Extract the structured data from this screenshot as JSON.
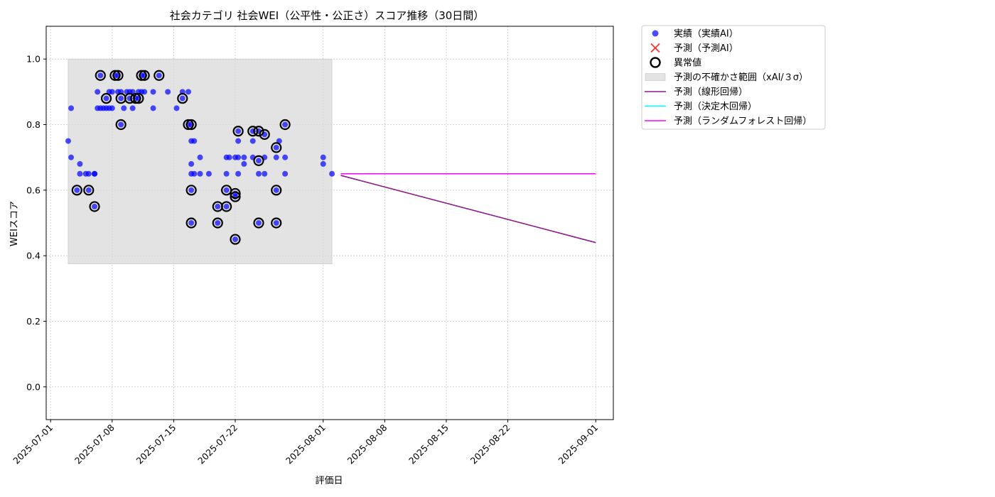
{
  "chart_data": {
    "type": "scatter",
    "title": "社会カテゴリ 社会WEI（公平性・公正さ）スコア推移（30日間）",
    "xlabel": "評価日",
    "ylabel": "WEIスコア",
    "xlim": [
      "2025-06-30T12:00",
      "2025-09-03"
    ],
    "ylim": [
      -0.1,
      1.1
    ],
    "x_ticks": [
      "2025-07-01",
      "2025-07-08",
      "2025-07-15",
      "2025-07-22",
      "2025-08-01",
      "2025-08-08",
      "2025-08-15",
      "2025-08-22",
      "2025-09-01"
    ],
    "y_ticks": [
      "0.0",
      "0.2",
      "0.4",
      "0.6",
      "0.8",
      "1.0"
    ],
    "grid": true,
    "legend_position": "outside upper right",
    "uncertainty_band": {
      "x_start": "2025-07-03",
      "x_end": "2025-08-02",
      "y_min": 0.375,
      "y_max": 1.0,
      "color": "#d9d9d9"
    },
    "series": [
      {
        "name": "実績（実績AI）",
        "kind": "scatter",
        "color": "#0000ff",
        "points": [
          [
            "2025-07-03 00:00",
            0.75
          ],
          [
            "2025-07-03 08:00",
            0.7
          ],
          [
            "2025-07-03 08:00",
            0.85
          ],
          [
            "2025-07-04 00:00",
            0.6
          ],
          [
            "2025-07-04 08:00",
            0.68
          ],
          [
            "2025-07-04 08:00",
            0.65
          ],
          [
            "2025-07-05 00:00",
            0.65
          ],
          [
            "2025-07-05 08:00",
            0.6
          ],
          [
            "2025-07-05 08:00",
            0.65
          ],
          [
            "2025-07-06 00:00",
            0.55
          ],
          [
            "2025-07-06 00:00",
            0.65
          ],
          [
            "2025-07-06 00:00",
            0.65
          ],
          [
            "2025-07-06 08:00",
            0.9
          ],
          [
            "2025-07-06 08:00",
            0.85
          ],
          [
            "2025-07-06 16:00",
            0.95
          ],
          [
            "2025-07-06 16:00",
            0.85
          ],
          [
            "2025-07-07 00:00",
            0.85
          ],
          [
            "2025-07-07 08:00",
            0.88
          ],
          [
            "2025-07-07 08:00",
            0.85
          ],
          [
            "2025-07-07 16:00",
            0.9
          ],
          [
            "2025-07-07 16:00",
            0.85
          ],
          [
            "2025-07-08 00:00",
            0.9
          ],
          [
            "2025-07-08 00:00",
            0.85
          ],
          [
            "2025-07-08 08:00",
            0.95
          ],
          [
            "2025-07-08 16:00",
            0.9
          ],
          [
            "2025-07-08 16:00",
            0.95
          ],
          [
            "2025-07-09 00:00",
            0.88
          ],
          [
            "2025-07-09 00:00",
            0.9
          ],
          [
            "2025-07-09 00:00",
            0.8
          ],
          [
            "2025-07-09 08:00",
            0.85
          ],
          [
            "2025-07-09 16:00",
            0.9
          ],
          [
            "2025-07-10 00:00",
            0.88
          ],
          [
            "2025-07-10 00:00",
            0.9
          ],
          [
            "2025-07-10 08:00",
            0.9
          ],
          [
            "2025-07-10 08:00",
            0.85
          ],
          [
            "2025-07-10 16:00",
            0.88
          ],
          [
            "2025-07-11 00:00",
            0.9
          ],
          [
            "2025-07-11 00:00",
            0.88
          ],
          [
            "2025-07-11 08:00",
            0.95
          ],
          [
            "2025-07-11 08:00",
            0.9
          ],
          [
            "2025-07-11 16:00",
            0.95
          ],
          [
            "2025-07-11 16:00",
            0.9
          ],
          [
            "2025-07-12 16:00",
            0.9
          ],
          [
            "2025-07-12 16:00",
            0.85
          ],
          [
            "2025-07-13 08:00",
            0.95
          ],
          [
            "2025-07-14 08:00",
            0.9
          ],
          [
            "2025-07-15 08:00",
            0.85
          ],
          [
            "2025-07-16 00:00",
            0.88
          ],
          [
            "2025-07-16 00:00",
            0.9
          ],
          [
            "2025-07-16 16:00",
            0.8
          ],
          [
            "2025-07-16 16:00",
            0.9
          ],
          [
            "2025-07-17 00:00",
            0.8
          ],
          [
            "2025-07-17 00:00",
            0.75
          ],
          [
            "2025-07-17 00:00",
            0.68
          ],
          [
            "2025-07-17 00:00",
            0.65
          ],
          [
            "2025-07-17 00:00",
            0.6
          ],
          [
            "2025-07-17 00:00",
            0.5
          ],
          [
            "2025-07-17 08:00",
            0.75
          ],
          [
            "2025-07-17 08:00",
            0.65
          ],
          [
            "2025-07-18 00:00",
            0.7
          ],
          [
            "2025-07-18 00:00",
            0.65
          ],
          [
            "2025-07-19 00:00",
            0.65
          ],
          [
            "2025-07-20 00:00",
            0.55
          ],
          [
            "2025-07-20 00:00",
            0.5
          ],
          [
            "2025-07-21 00:00",
            0.7
          ],
          [
            "2025-07-21 00:00",
            0.65
          ],
          [
            "2025-07-21 00:00",
            0.6
          ],
          [
            "2025-07-21 00:00",
            0.55
          ],
          [
            "2025-07-21 08:00",
            0.7
          ],
          [
            "2025-07-22 00:00",
            0.7
          ],
          [
            "2025-07-22 00:00",
            0.59
          ],
          [
            "2025-07-22 00:00",
            0.58
          ],
          [
            "2025-07-22 00:00",
            0.45
          ],
          [
            "2025-07-22 08:00",
            0.78
          ],
          [
            "2025-07-22 08:00",
            0.75
          ],
          [
            "2025-07-22 08:00",
            0.7
          ],
          [
            "2025-07-22 08:00",
            0.65
          ],
          [
            "2025-07-23 00:00",
            0.7
          ],
          [
            "2025-07-23 00:00",
            0.68
          ],
          [
            "2025-07-24 00:00",
            0.78
          ],
          [
            "2025-07-24 00:00",
            0.75
          ],
          [
            "2025-07-24 00:00",
            0.7
          ],
          [
            "2025-07-24 16:00",
            0.78
          ],
          [
            "2025-07-24 16:00",
            0.69
          ],
          [
            "2025-07-24 16:00",
            0.65
          ],
          [
            "2025-07-24 16:00",
            0.5
          ],
          [
            "2025-07-25 08:00",
            0.77
          ],
          [
            "2025-07-25 08:00",
            0.7
          ],
          [
            "2025-07-25 08:00",
            0.65
          ],
          [
            "2025-07-26 16:00",
            0.73
          ],
          [
            "2025-07-26 16:00",
            0.7
          ],
          [
            "2025-07-26 16:00",
            0.6
          ],
          [
            "2025-07-26 16:00",
            0.5
          ],
          [
            "2025-07-27 00:00",
            0.75
          ],
          [
            "2025-07-27 16:00",
            0.8
          ],
          [
            "2025-07-27 16:00",
            0.7
          ],
          [
            "2025-07-27 16:00",
            0.65
          ],
          [
            "2025-08-01 00:00",
            0.7
          ],
          [
            "2025-08-01 00:00",
            0.68
          ],
          [
            "2025-08-02 00:00",
            0.65
          ]
        ]
      },
      {
        "name": "予測（予測AI）",
        "kind": "scatter-x",
        "color": "#ff0000",
        "points": []
      },
      {
        "name": "異常値",
        "kind": "outlier-ring",
        "color": "#000000",
        "points": [
          [
            "2025-07-04 00:00",
            0.6
          ],
          [
            "2025-07-05 08:00",
            0.6
          ],
          [
            "2025-07-06 00:00",
            0.55
          ],
          [
            "2025-07-06 16:00",
            0.95
          ],
          [
            "2025-07-07 08:00",
            0.88
          ],
          [
            "2025-07-08 08:00",
            0.95
          ],
          [
            "2025-07-08 16:00",
            0.95
          ],
          [
            "2025-07-09 00:00",
            0.88
          ],
          [
            "2025-07-09 00:00",
            0.8
          ],
          [
            "2025-07-10 00:00",
            0.88
          ],
          [
            "2025-07-10 16:00",
            0.88
          ],
          [
            "2025-07-11 00:00",
            0.88
          ],
          [
            "2025-07-11 08:00",
            0.95
          ],
          [
            "2025-07-11 16:00",
            0.95
          ],
          [
            "2025-07-13 08:00",
            0.95
          ],
          [
            "2025-07-16 00:00",
            0.88
          ],
          [
            "2025-07-16 16:00",
            0.8
          ],
          [
            "2025-07-17 00:00",
            0.8
          ],
          [
            "2025-07-17 00:00",
            0.6
          ],
          [
            "2025-07-17 00:00",
            0.5
          ],
          [
            "2025-07-20 00:00",
            0.55
          ],
          [
            "2025-07-20 00:00",
            0.5
          ],
          [
            "2025-07-21 00:00",
            0.6
          ],
          [
            "2025-07-21 00:00",
            0.55
          ],
          [
            "2025-07-22 00:00",
            0.59
          ],
          [
            "2025-07-22 00:00",
            0.58
          ],
          [
            "2025-07-22 00:00",
            0.45
          ],
          [
            "2025-07-22 08:00",
            0.78
          ],
          [
            "2025-07-24 00:00",
            0.78
          ],
          [
            "2025-07-24 16:00",
            0.78
          ],
          [
            "2025-07-24 16:00",
            0.69
          ],
          [
            "2025-07-24 16:00",
            0.5
          ],
          [
            "2025-07-25 08:00",
            0.77
          ],
          [
            "2025-07-26 16:00",
            0.73
          ],
          [
            "2025-07-26 16:00",
            0.6
          ],
          [
            "2025-07-26 16:00",
            0.5
          ],
          [
            "2025-07-27 16:00",
            0.8
          ]
        ]
      },
      {
        "name": "予測の不確かさ範囲（xAI/３σ）",
        "kind": "band",
        "color": "#d9d9d9"
      },
      {
        "name": "予測（線形回帰）",
        "kind": "line",
        "color": "#8b1a8b",
        "points": [
          [
            "2025-08-03",
            0.645
          ],
          [
            "2025-09-01",
            0.44
          ]
        ]
      },
      {
        "name": "予測（決定木回帰）",
        "kind": "line",
        "color": "#00ffff",
        "points": [
          [
            "2025-08-03",
            0.65
          ],
          [
            "2025-09-01",
            0.65
          ]
        ]
      },
      {
        "name": "予測（ランダムフォレスト回帰）",
        "kind": "line",
        "color": "#ff00ff",
        "points": [
          [
            "2025-08-03",
            0.65
          ],
          [
            "2025-09-01",
            0.65
          ]
        ]
      }
    ]
  }
}
